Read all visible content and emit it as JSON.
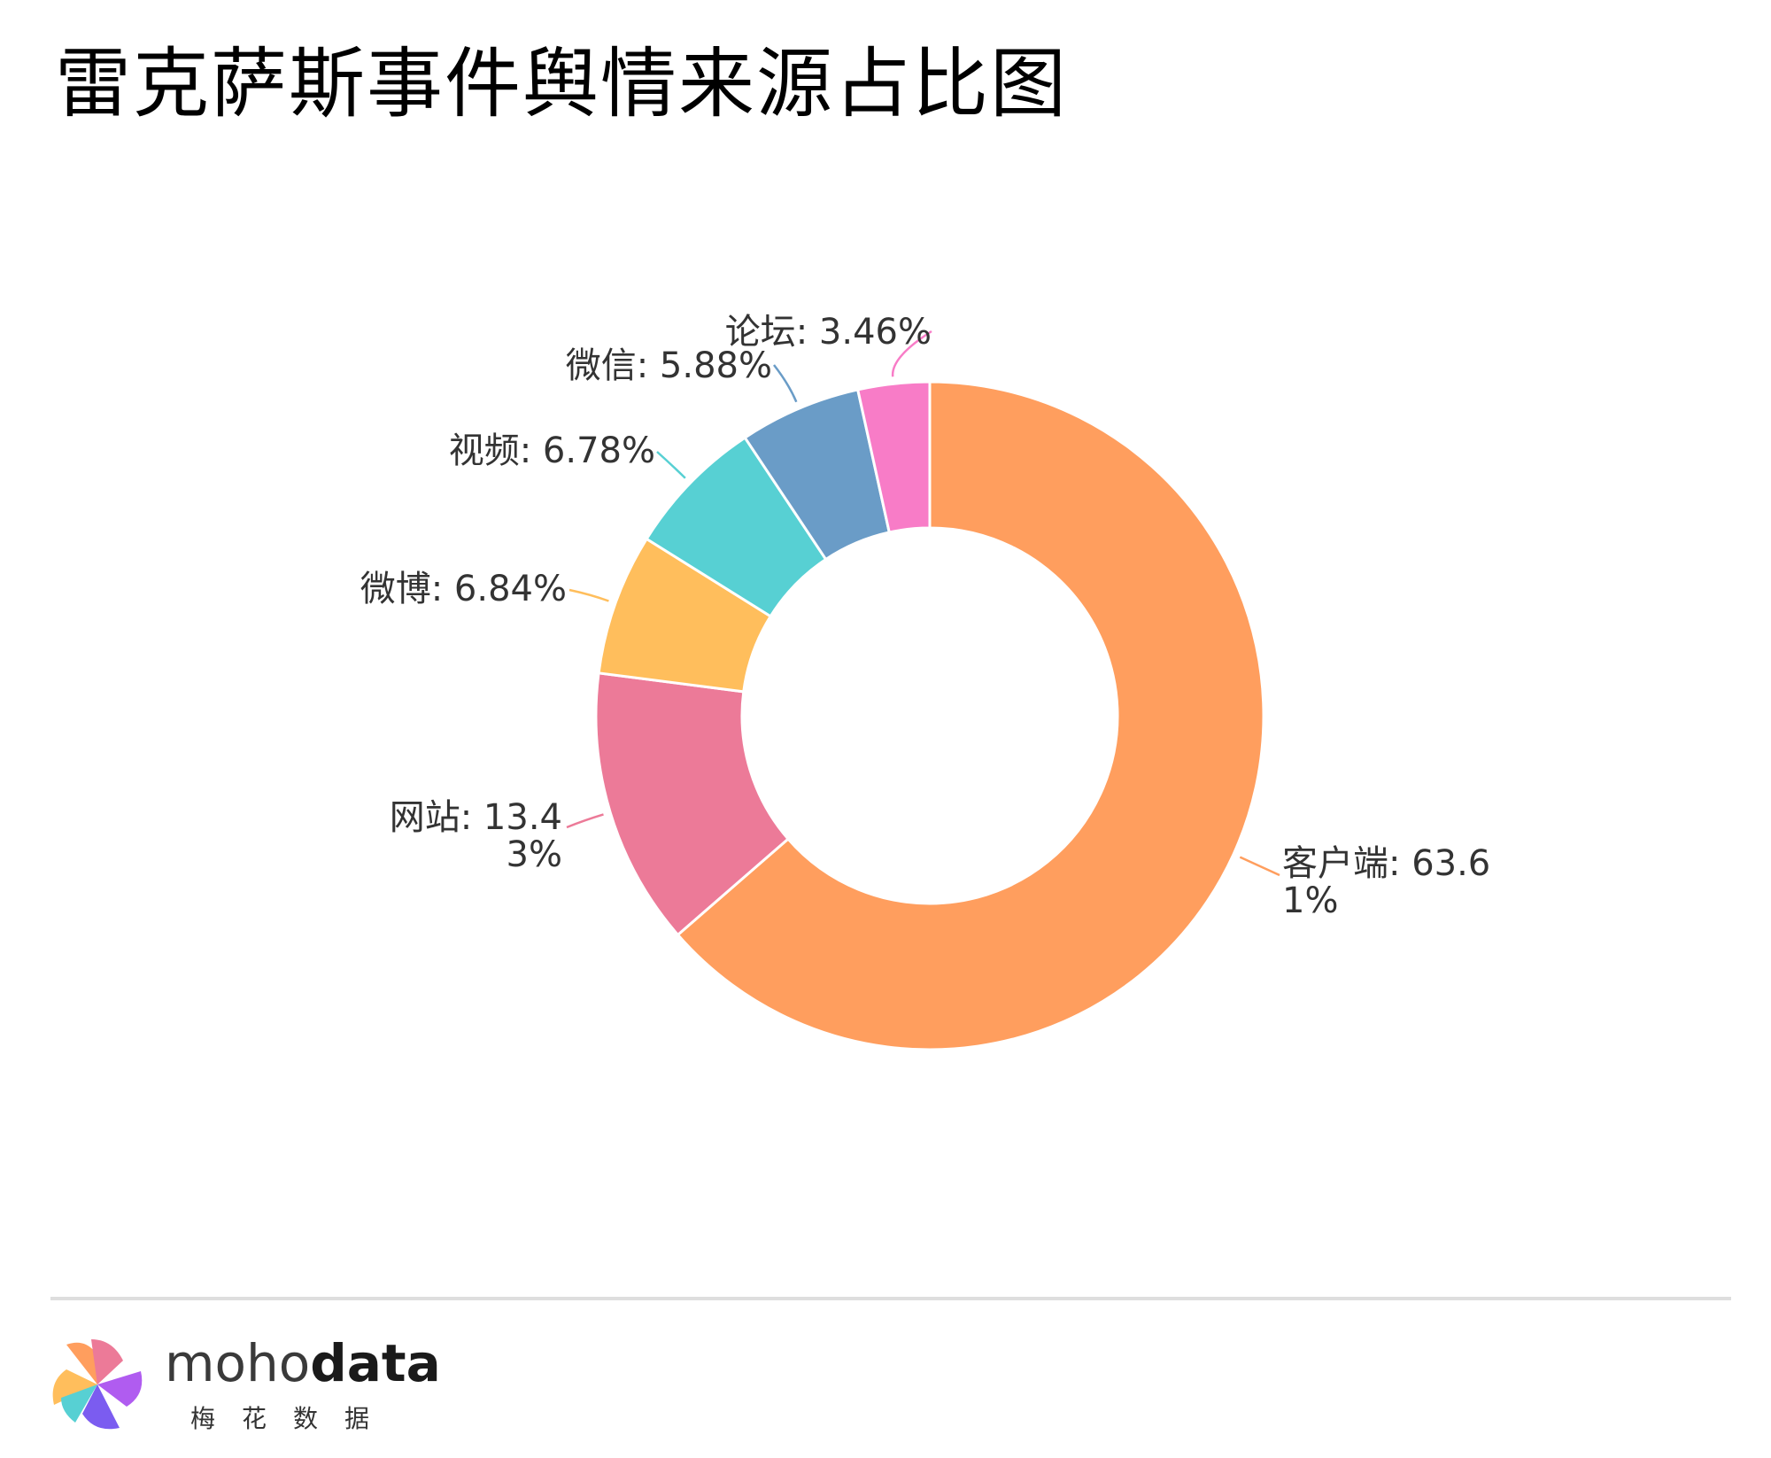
{
  "title": "雷克萨斯事件舆情来源占比图",
  "chart_data": {
    "type": "pie",
    "donut": true,
    "title": "雷克萨斯事件舆情来源占比图",
    "slices": [
      {
        "label": "客户端",
        "value": 63.61,
        "text": "客户端: 63.61%",
        "color": "#FF9E5E"
      },
      {
        "label": "网站",
        "value": 13.43,
        "text": "网站: 13.43%",
        "color": "#EC7A98"
      },
      {
        "label": "微博",
        "value": 6.84,
        "text": "微博: 6.84%",
        "color": "#FFBE5C"
      },
      {
        "label": "视频",
        "value": 6.78,
        "text": "视频: 6.78%",
        "color": "#57D0D3"
      },
      {
        "label": "微信",
        "value": 5.88,
        "text": "微信: 5.88%",
        "color": "#6A9CC7"
      },
      {
        "label": "论坛",
        "value": 3.46,
        "text": "论坛: 3.46%",
        "color": "#F87CC7"
      }
    ]
  },
  "footer": {
    "brand_part1": "moho",
    "brand_part2": "data",
    "brand_sub": "梅花数据"
  }
}
